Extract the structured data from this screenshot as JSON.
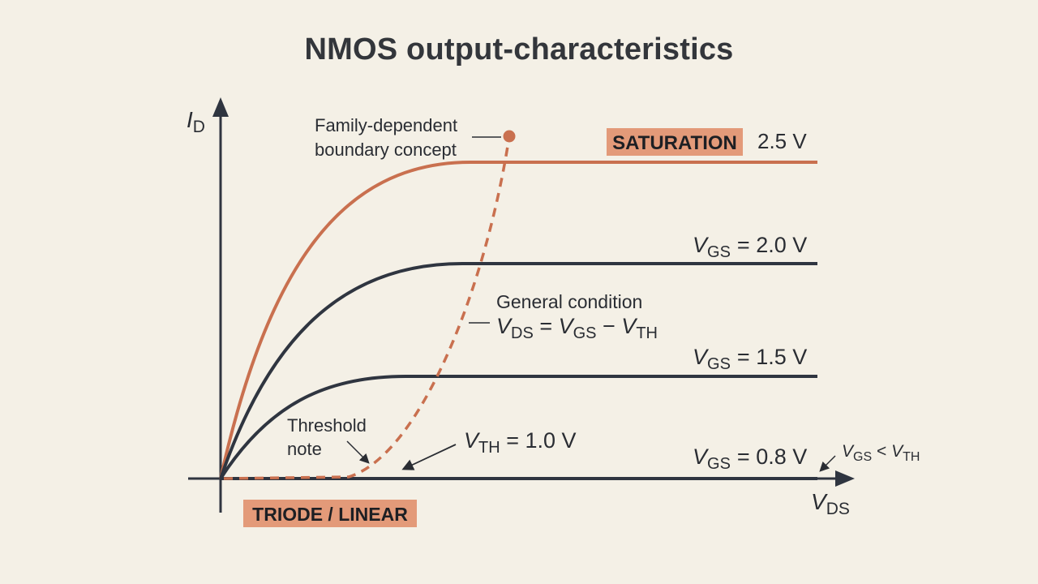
{
  "title": "NMOS output-characteristics",
  "axes": {
    "y_symbol": "I",
    "y_subscript": "D",
    "x_symbol": "V",
    "x_subscript": "DS"
  },
  "regions": {
    "saturation": "SATURATION",
    "triode": "TRIODE / LINEAR"
  },
  "curves": [
    {
      "label_symbol": "",
      "label_subscript": "",
      "label_value": "2.5 V",
      "highlight": true
    },
    {
      "label_symbol": "V",
      "label_subscript": "GS",
      "label_value": "= 2.0 V",
      "highlight": false
    },
    {
      "label_symbol": "V",
      "label_subscript": "GS",
      "label_value": "= 1.5 V",
      "highlight": false
    },
    {
      "label_symbol": "V",
      "label_subscript": "GS",
      "label_value": "= 0.8 V",
      "highlight": false
    }
  ],
  "annotations": {
    "boundary_line1": "Family-dependent",
    "boundary_line2": "boundary concept",
    "general_line1": "General condition",
    "general_eq": {
      "a": "V",
      "a_sub": "DS",
      "eq": " = ",
      "b": "V",
      "b_sub": "GS",
      "minus": " − ",
      "c": "V",
      "c_sub": "TH"
    },
    "threshold_line1": "Threshold",
    "threshold_line2": "note",
    "vth_symbol": "V",
    "vth_subscript": "TH",
    "vth_value": " = 1.0 V",
    "subthreshold": {
      "a": "V",
      "a_sub": "GS",
      "lt": " < ",
      "b": "V",
      "b_sub": "TH"
    }
  },
  "colors": {
    "highlight": "#c9704f",
    "curve": "#2f3540",
    "badge_fill": "#e39a79",
    "background": "#f4f0e6"
  }
}
